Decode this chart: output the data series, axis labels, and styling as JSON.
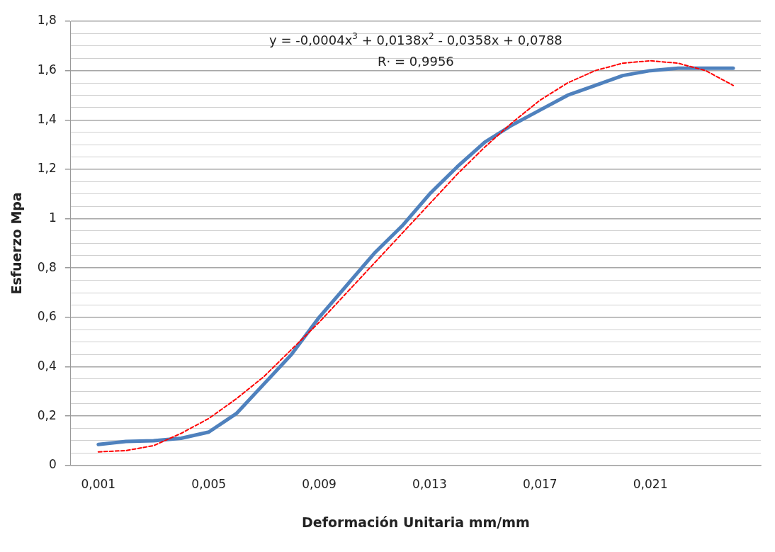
{
  "chart_data": {
    "type": "line",
    "xlabel": "Deformación Unitaria mm/mm",
    "ylabel": "Esfuerzo Mpa",
    "x": [
      0.001,
      0.002,
      0.003,
      0.004,
      0.005,
      0.006,
      0.007,
      0.008,
      0.009,
      0.01,
      0.011,
      0.012,
      0.013,
      0.014,
      0.015,
      0.016,
      0.017,
      0.018,
      0.019,
      0.02,
      0.021,
      0.022,
      0.023,
      0.024
    ],
    "series": [
      {
        "color": "#4f81bd",
        "line_style": "solid",
        "values": [
          0.085,
          0.097,
          0.1,
          0.11,
          0.135,
          0.21,
          0.33,
          0.45,
          0.6,
          0.73,
          0.86,
          0.97,
          1.1,
          1.21,
          1.31,
          1.38,
          1.44,
          1.5,
          1.54,
          1.58,
          1.6,
          1.61,
          1.61,
          1.61
        ]
      },
      {
        "type": "line",
        "color": "#ff0000",
        "line_style": "dashed",
        "values": [
          0.055,
          0.06,
          0.08,
          0.13,
          0.19,
          0.27,
          0.36,
          0.47,
          0.58,
          0.7,
          0.82,
          0.94,
          1.06,
          1.18,
          1.29,
          1.39,
          1.48,
          1.55,
          1.6,
          1.63,
          1.64,
          1.63,
          1.6,
          1.54
        ]
      }
    ],
    "xlim": [
      0,
      0.025
    ],
    "xticks": [
      {
        "value": 0.001,
        "label": "0,001"
      },
      {
        "value": 0.005,
        "label": "0,005"
      },
      {
        "value": 0.009,
        "label": "0,009"
      },
      {
        "value": 0.013,
        "label": "0,013"
      },
      {
        "value": 0.017,
        "label": "0,017"
      },
      {
        "value": 0.021,
        "label": "0,021"
      }
    ],
    "ylim": [
      0,
      1.8
    ],
    "yticks": [
      0,
      {
        "value": 0.05,
        "label": null
      },
      {
        "value": 0.1,
        "label": null
      },
      {
        "value": 0.15,
        "label": null
      },
      {
        "value": 0.2,
        "label": "0,2"
      },
      {
        "value": 0.25,
        "label": null
      },
      {
        "value": 0.3,
        "label": null
      },
      {
        "value": 0.35,
        "label": null
      },
      {
        "value": 0.4,
        "label": "0,4"
      },
      {
        "value": 0.45,
        "label": null
      },
      {
        "value": 0.5,
        "label": null
      },
      {
        "value": 0.55,
        "label": null
      },
      {
        "value": 0.6,
        "label": "0,6"
      },
      {
        "value": 0.65,
        "label": null
      },
      {
        "value": 0.7,
        "label": null
      },
      {
        "value": 0.75,
        "label": null
      },
      {
        "value": 0.8,
        "label": "0,8"
      },
      {
        "value": 0.85,
        "label": null
      },
      {
        "value": 0.9,
        "label": null
      },
      {
        "value": 0.95,
        "label": null
      },
      1,
      {
        "value": 1.05,
        "label": null
      },
      {
        "value": 1.1,
        "label": null
      },
      {
        "value": 1.15,
        "label": null
      },
      {
        "value": 1.2,
        "label": "1,2"
      },
      {
        "value": 1.25,
        "label": null
      },
      {
        "value": 1.3,
        "label": null
      },
      {
        "value": 1.35,
        "label": null
      },
      {
        "value": 1.4,
        "label": "1,4"
      },
      {
        "value": 1.45,
        "label": null
      },
      {
        "value": 1.5,
        "label": null
      },
      {
        "value": 1.55,
        "label": null
      },
      {
        "value": 1.6,
        "label": "1,6"
      },
      {
        "value": 1.65,
        "label": null
      },
      {
        "value": 1.7,
        "label": null
      },
      {
        "value": 1.75,
        "label": null
      },
      {
        "value": 1.8,
        "label": "1,8"
      }
    ],
    "grid": "y",
    "legend": false,
    "marker": "none",
    "annotations": [
      "y = -0,0004x$^{3}$ + 0,0138x$^{2}$ - 0,0358x + 0,0788",
      "R· = 0,9956"
    ]
  }
}
